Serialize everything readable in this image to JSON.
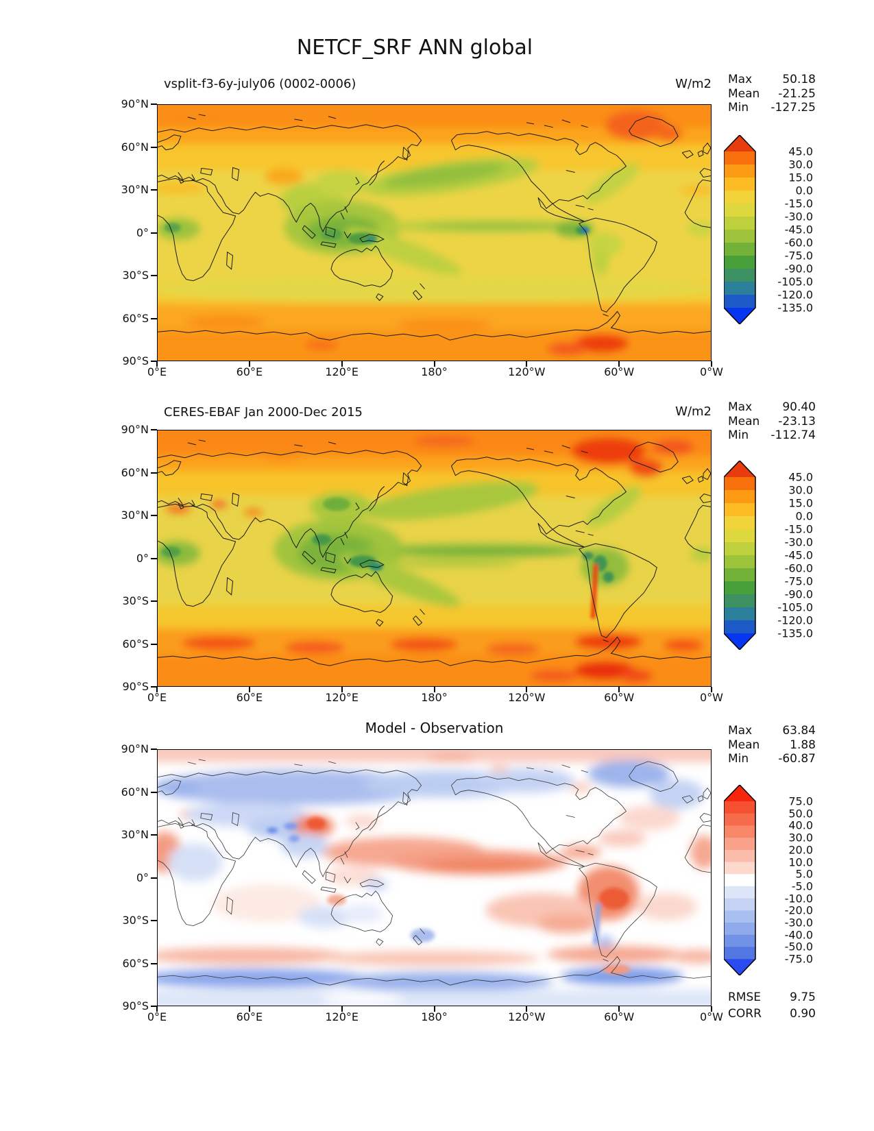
{
  "title": "NETCF_SRF ANN global",
  "labels": {
    "max": "Max",
    "mean": "Mean",
    "min": "Min",
    "rmse": "RMSE",
    "corr": "CORR"
  },
  "axes": {
    "lat": [
      "90°N",
      "60°N",
      "30°N",
      "0°",
      "30°S",
      "60°S",
      "90°S"
    ],
    "lon": [
      "0°E",
      "60°E",
      "120°E",
      "180°",
      "120°W",
      "60°W",
      "0°W"
    ]
  },
  "panels": [
    {
      "subtitle": "vsplit-f3-6y-july06 (0002-0006)",
      "units": "W/m2",
      "stats": {
        "max": "50.18",
        "mean": "-21.25",
        "min": "-127.25"
      },
      "colorbar": {
        "ticks": [
          "45.0",
          "30.0",
          "15.0",
          "0.0",
          "-15.0",
          "-30.0",
          "-45.0",
          "-60.0",
          "-75.0",
          "-90.0",
          "-105.0",
          "-120.0",
          "-135.0"
        ],
        "over": "#e73c0e",
        "colors": [
          "#f8700c",
          "#fc9a14",
          "#fdbb24",
          "#f2d339",
          "#dcd83d",
          "#bed03b",
          "#9cc33a",
          "#72b239",
          "#48a03a",
          "#3d9062",
          "#2b7f9b",
          "#1d5ac8"
        ],
        "under": "#0636f0"
      }
    },
    {
      "subtitle": "CERES-EBAF Jan 2000-Dec 2015",
      "units": "W/m2",
      "stats": {
        "max": "90.40",
        "mean": "-23.13",
        "min": "-112.74"
      },
      "colorbar": {
        "ticks": [
          "45.0",
          "30.0",
          "15.0",
          "0.0",
          "-15.0",
          "-30.0",
          "-45.0",
          "-60.0",
          "-75.0",
          "-90.0",
          "-105.0",
          "-120.0",
          "-135.0"
        ],
        "over": "#e73c0e",
        "colors": [
          "#f8700c",
          "#fc9a14",
          "#fdbb24",
          "#f2d339",
          "#dcd83d",
          "#bed03b",
          "#9cc33a",
          "#72b239",
          "#48a03a",
          "#3d9062",
          "#2b7f9b",
          "#1d5ac8"
        ],
        "under": "#0636f0"
      }
    },
    {
      "subtitle": "Model - Observation",
      "stats": {
        "max": "63.84",
        "mean": "1.88",
        "min": "-60.87"
      },
      "rmse": "9.75",
      "corr": "0.90",
      "colorbar": {
        "ticks": [
          "75.0",
          "50.0",
          "40.0",
          "30.0",
          "20.0",
          "10.0",
          "5.0",
          "-5.0",
          "-10.0",
          "-20.0",
          "-30.0",
          "-40.0",
          "-50.0",
          "-75.0"
        ],
        "over": "#f7250b",
        "colors": [
          "#f5502f",
          "#f66b4b",
          "#f8876a",
          "#f9a189",
          "#fbbcab",
          "#fdd8cc",
          "#ffffff",
          "#dde6f8",
          "#c5d2f4",
          "#a9bff0",
          "#8fabec",
          "#7292e7",
          "#5377e2"
        ],
        "under": "#2b4af0"
      }
    }
  ],
  "chart_data": {
    "type": "heatmap",
    "title": "NETCF_SRF ANN global",
    "projection": "equirectangular, longitude 0E-360E, latitude 90N-90S",
    "x": {
      "tick_labels": [
        "0°E",
        "60°E",
        "120°E",
        "180°",
        "120°W",
        "60°W",
        "0°W"
      ],
      "range_deg_east": [
        0,
        360
      ]
    },
    "y": {
      "tick_labels": [
        "90°N",
        "60°N",
        "30°N",
        "0°",
        "30°S",
        "60°S",
        "90°S"
      ],
      "range_deg_lat": [
        90,
        -90
      ]
    },
    "legend_position": "right",
    "grid": false,
    "panels": [
      {
        "name": "model",
        "subtitle": "vsplit-f3-6y-july06 (0002-0006)",
        "units": "W/m2",
        "max": 50.18,
        "mean": -21.25,
        "min": -127.25,
        "contour_levels": [
          45,
          30,
          15,
          0,
          -15,
          -30,
          -45,
          -60,
          -75,
          -90,
          -105,
          -120,
          -135
        ]
      },
      {
        "name": "observation",
        "subtitle": "CERES-EBAF Jan 2000-Dec 2015",
        "units": "W/m2",
        "max": 90.4,
        "mean": -23.13,
        "min": -112.74,
        "contour_levels": [
          45,
          30,
          15,
          0,
          -15,
          -30,
          -45,
          -60,
          -75,
          -90,
          -105,
          -120,
          -135
        ]
      },
      {
        "name": "difference",
        "subtitle": "Model - Observation",
        "max": 63.84,
        "mean": 1.88,
        "min": -60.87,
        "rmse": 9.75,
        "corr": 0.9,
        "contour_levels": [
          75,
          50,
          40,
          30,
          20,
          10,
          5,
          -5,
          -10,
          -20,
          -30,
          -40,
          -50,
          -75
        ]
      }
    ]
  }
}
